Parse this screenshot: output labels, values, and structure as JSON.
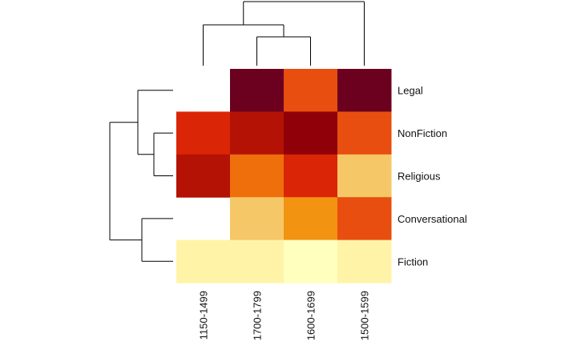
{
  "chart_data": {
    "type": "heatmap",
    "title": "",
    "xlabel": "",
    "ylabel": "",
    "rows": [
      "Legal",
      "NonFiction",
      "Religious",
      "Conversational",
      "Fiction"
    ],
    "columns": [
      "1150-1499",
      "1700-1799",
      "1600-1699",
      "1500-1599"
    ],
    "values": [
      [
        null,
        0.97,
        0.62,
        0.98
      ],
      [
        0.74,
        0.86,
        0.92,
        0.62
      ],
      [
        0.82,
        0.58,
        0.7,
        0.3
      ],
      [
        null,
        0.3,
        0.48,
        0.64
      ],
      [
        0.1,
        0.1,
        0.04,
        0.1
      ]
    ],
    "value_range": [
      0,
      1
    ],
    "color_scale": [
      "#ffffcc",
      "#ffeda0",
      "#fed976",
      "#feb24c",
      "#fd8d3c",
      "#fc4e2a",
      "#e31a1c",
      "#bd0026",
      "#800026"
    ],
    "cell_colors": [
      [
        null,
        "#6b001f",
        "#e84e0f",
        "#6b001f"
      ],
      [
        "#da2506",
        "#b41205",
        "#900008",
        "#e84e0f"
      ],
      [
        "#b41205",
        "#ee6f0b",
        "#da2506",
        "#f5c767"
      ],
      [
        null,
        "#f5c767",
        "#f29311",
        "#e84e0f"
      ],
      [
        "#fff3a8",
        "#fff3a8",
        "#ffffbe",
        "#fff3a8"
      ]
    ],
    "row_dendrogram": {
      "merges": [
        {
          "left": "NonFiction",
          "right": "Religious"
        },
        {
          "left": "Legal",
          "right": "NonFiction+Religious"
        },
        {
          "left": "Conversational",
          "right": "Fiction"
        },
        {
          "left": "Legal+NonFiction+Religious",
          "right": "Conversational+Fiction"
        }
      ]
    },
    "column_dendrogram": {
      "merges": [
        {
          "left": "1700-1799",
          "right": "1600-1699"
        },
        {
          "left": "1150-1499",
          "right": "1700-1799+1600-1699"
        },
        {
          "left": "1150-1499+1700-1799+1600-1699",
          "right": "1500-1599"
        }
      ]
    },
    "legend": "none",
    "grid": false
  }
}
